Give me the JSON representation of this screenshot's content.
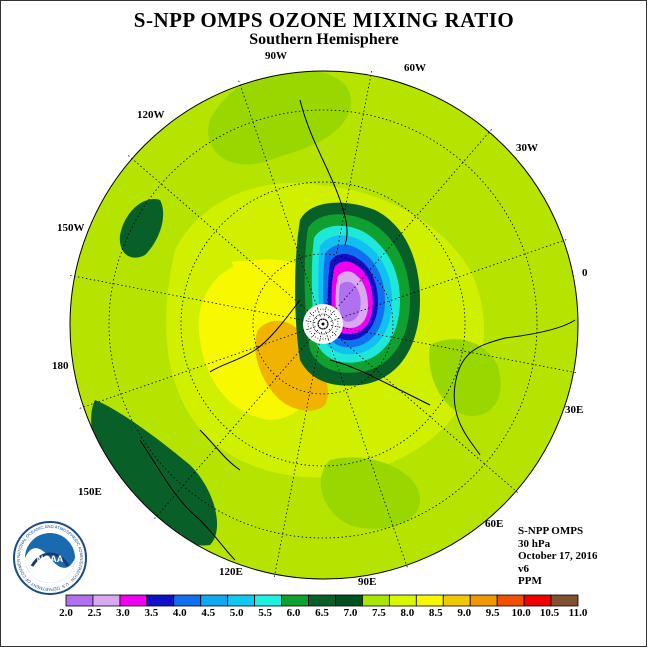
{
  "title": "S-NPP OMPS OZONE MIXING RATIO",
  "subtitle": "Southern Hemisphere",
  "longitude_labels": [
    {
      "text": "90W",
      "lon": -90
    },
    {
      "text": "60W",
      "lon": -60
    },
    {
      "text": "120W",
      "lon": -120
    },
    {
      "text": "30W",
      "lon": -30
    },
    {
      "text": "150W",
      "lon": -150
    },
    {
      "text": "0",
      "lon": 0
    },
    {
      "text": "180",
      "lon": 180
    },
    {
      "text": "30E",
      "lon": 30
    },
    {
      "text": "150E",
      "lon": 150
    },
    {
      "text": "60E",
      "lon": 60
    },
    {
      "text": "120E",
      "lon": 120
    },
    {
      "text": "90E",
      "lon": 90
    }
  ],
  "info": {
    "instrument": "S-NPP OMPS",
    "level": "30 hPa",
    "date": "October 17, 2016",
    "version": "v6",
    "units": "PPM"
  },
  "logo": {
    "text": "NOAA",
    "ring_text": "NATIONAL OCEANIC AND ATMOSPHERIC ADMINISTRATION · U.S. DEPARTMENT OF COMMERCE"
  },
  "colorbar": {
    "labels": [
      "2.0",
      "2.5",
      "3.0",
      "3.5",
      "4.0",
      "4.5",
      "5.0",
      "5.5",
      "6.0",
      "6.5",
      "7.0",
      "7.5",
      "8.0",
      "8.5",
      "9.0",
      "9.5",
      "10.0",
      "10.5",
      "11.0"
    ],
    "colors": [
      "#b070f0",
      "#d8a8f0",
      "#f000f0",
      "#1010c8",
      "#1070f0",
      "#10a8f0",
      "#10c8f0",
      "#20f0e0",
      "#10a030",
      "#086028",
      "#005020",
      "#a8e800",
      "#d8f800",
      "#f8f800",
      "#f0c800",
      "#f09800",
      "#f05000",
      "#f00000",
      "#805030"
    ]
  },
  "map_colors": {
    "ocean_field": "#b4e400",
    "yellowgreen": "#d0f000",
    "green_band": "#98d800",
    "yellow": "#f8f800",
    "orange": "#f0b400",
    "dark_green": "#086028",
    "mid_green": "#10a030",
    "cyan": "#20e8d8",
    "light_blue": "#10c0f0",
    "blue": "#1070f0",
    "navy": "#1010c8",
    "magenta": "#f000f0",
    "purple": "#b070f0",
    "lavender": "#d8a8f0"
  }
}
